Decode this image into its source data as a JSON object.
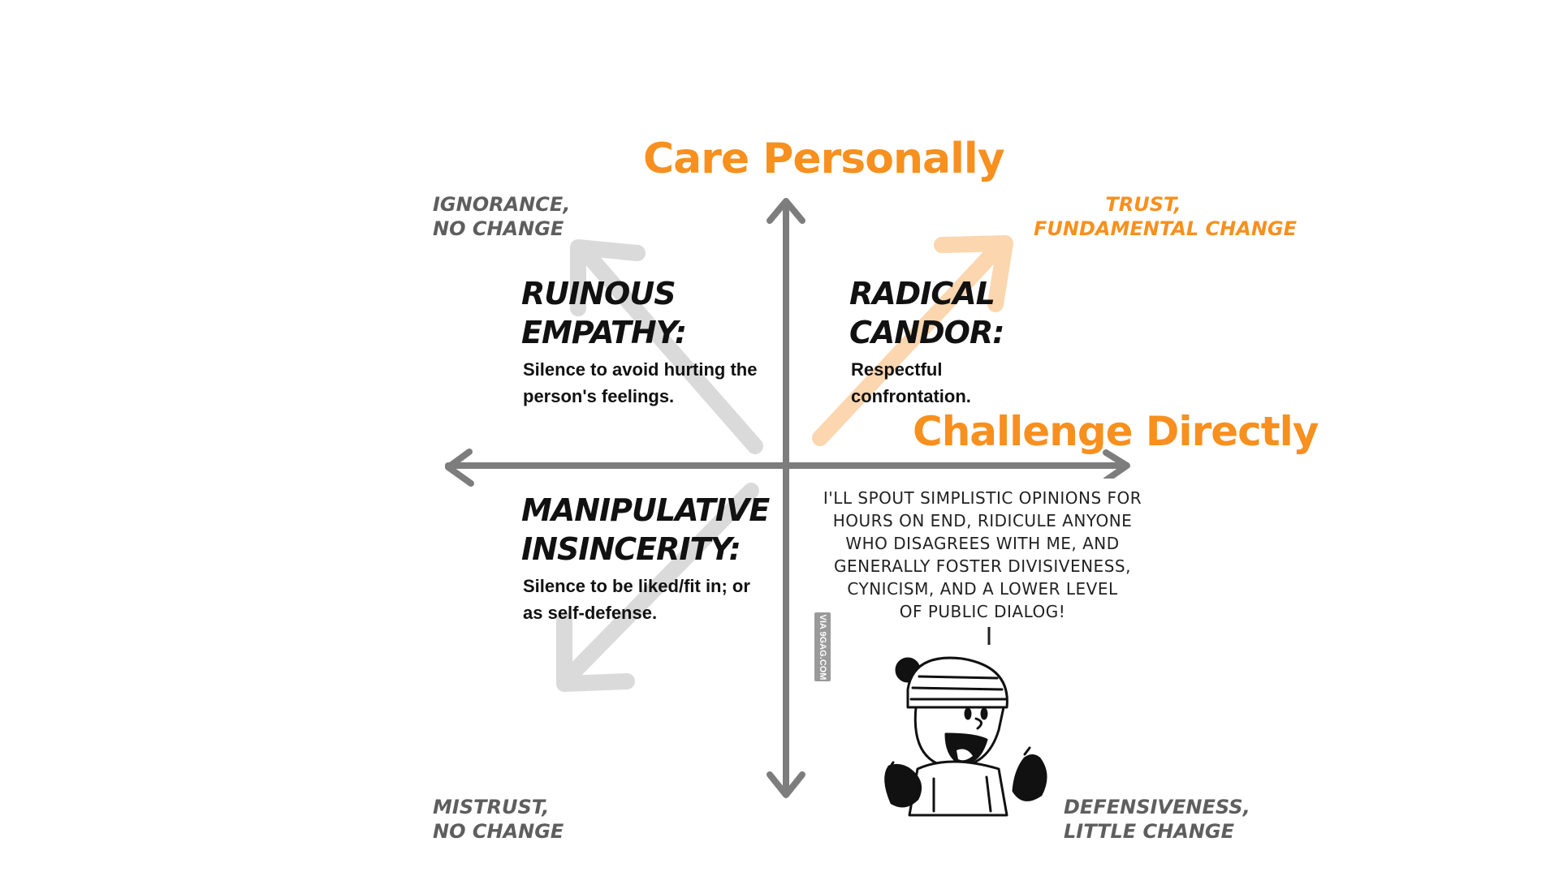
{
  "axes": {
    "vertical_title": "Care Personally",
    "horizontal_title": "Challenge Directly"
  },
  "corners": {
    "top_left": [
      "IGNORANCE,",
      "NO CHANGE"
    ],
    "top_right": [
      "TRUST,",
      "FUNDAMENTAL CHANGE"
    ],
    "bottom_left": [
      "MISTRUST,",
      "NO CHANGE"
    ],
    "bottom_right": [
      "DEFENSIVENESS,",
      "LITTLE CHANGE"
    ]
  },
  "quadrants": {
    "ruinous_empathy": {
      "title": [
        "RUINOUS",
        "EMPATHY:"
      ],
      "description": "Silence to avoid hurting the person's feelings."
    },
    "radical_candor": {
      "title": [
        "RADICAL",
        "CANDOR:"
      ],
      "description": "Respectful confrontation."
    },
    "manipulative_insincerity": {
      "title": [
        "MANIPULATIVE",
        "INSINCERITY:"
      ],
      "description": "Silence to be liked/fit in; or as self-defense."
    }
  },
  "comic": {
    "speech_lines": [
      "I'LL SPOUT SIMPLISTIC OPINIONS FOR",
      "HOURS ON END, RIDICULE ANYONE",
      "WHO DISAGREES WITH ME, AND",
      "GENERALLY FOSTER DIVISIVENESS,",
      "CYNICISM, AND A LOWER LEVEL",
      "OF PUBLIC DIALOG!"
    ],
    "watermark": "VIA 9GAG.COM"
  },
  "colors": {
    "accent": "#f7901e",
    "axis": "#7d7d7d",
    "faint_arrow": "#d8d8d8",
    "faint_orange_arrow": "#fbd6ae",
    "text": "#111111",
    "corner_gray": "#5e5e5e"
  }
}
